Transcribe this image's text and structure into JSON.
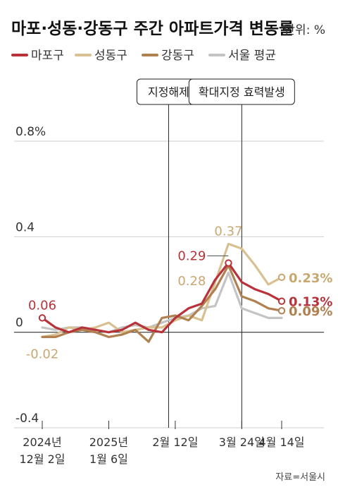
{
  "chart_data": {
    "type": "line",
    "title": "마포·성동·강동구 주간 아파트가격 변동률",
    "unit_label": "단위: %",
    "ylim": [
      -0.4,
      0.8
    ],
    "yticks": [
      {
        "value": 0.8,
        "label": "0.8%"
      },
      {
        "value": 0.4,
        "label": "0.4"
      },
      {
        "value": 0,
        "label": "0"
      },
      {
        "value": -0.4,
        "label": "-0.4"
      }
    ],
    "xlim": [
      0,
      23
    ],
    "xticks": [
      {
        "x": 0,
        "lines": [
          "2024년",
          "12월 2일"
        ]
      },
      {
        "x": 5,
        "lines": [
          "2025년",
          "1월 6일"
        ]
      },
      {
        "x": 10,
        "lines": [
          "2월 12일"
        ]
      },
      {
        "x": 15,
        "lines": [
          "3월 24일"
        ]
      },
      {
        "x": 18,
        "lines": [
          "4월 14일"
        ]
      }
    ],
    "events": [
      {
        "x": 9.5,
        "label": "지정해제"
      },
      {
        "x": 15,
        "label": "확대지정 효력발생"
      }
    ],
    "legend": [
      {
        "name": "마포구",
        "color": "#b8323a"
      },
      {
        "name": "성동구",
        "color": "#d8c090"
      },
      {
        "name": "강동구",
        "color": "#b08050"
      },
      {
        "name": "서울 평균",
        "color": "#c4c4c4"
      }
    ],
    "series": [
      {
        "name": "서울 평균",
        "color": "#c4c4c4",
        "x": [
          0,
          1,
          2,
          3,
          4,
          5,
          6,
          7,
          8,
          9,
          10,
          11,
          12,
          13,
          14,
          15,
          16,
          17,
          18
        ],
        "values": [
          0.02,
          0.01,
          0.02,
          0.02,
          0.01,
          0.0,
          0.02,
          0.03,
          0.02,
          0.04,
          0.06,
          0.07,
          0.1,
          0.11,
          0.25,
          0.1,
          0.08,
          0.06,
          0.06
        ]
      },
      {
        "name": "성동구",
        "color": "#d8c090",
        "x": [
          0,
          1,
          2,
          3,
          4,
          5,
          6,
          7,
          8,
          9,
          10,
          11,
          12,
          13,
          14,
          15,
          16,
          17,
          18
        ],
        "values": [
          -0.02,
          -0.01,
          0.02,
          0.01,
          0.02,
          0.04,
          0.0,
          0.01,
          0.02,
          0.02,
          0.05,
          0.07,
          0.05,
          0.21,
          0.37,
          0.35,
          0.28,
          0.2,
          0.23
        ]
      },
      {
        "name": "강동구",
        "color": "#b08050",
        "x": [
          0,
          1,
          2,
          3,
          4,
          5,
          6,
          7,
          8,
          9,
          10,
          11,
          12,
          13,
          14,
          15,
          16,
          17,
          18
        ],
        "values": [
          -0.02,
          -0.02,
          0.0,
          0.01,
          0.0,
          -0.02,
          -0.01,
          0.01,
          -0.04,
          0.06,
          0.07,
          0.05,
          0.11,
          0.18,
          0.28,
          0.15,
          0.13,
          0.1,
          0.09
        ]
      },
      {
        "name": "마포구",
        "color": "#b8323a",
        "x": [
          0,
          1,
          2,
          3,
          4,
          5,
          6,
          7,
          8,
          9,
          10,
          11,
          12,
          13,
          14,
          15,
          16,
          17,
          18
        ],
        "values": [
          0.06,
          0.02,
          0.0,
          0.02,
          0.01,
          0.0,
          0.01,
          0.04,
          0.01,
          0.0,
          0.06,
          0.1,
          0.12,
          0.22,
          0.29,
          0.21,
          0.18,
          0.16,
          0.13
        ]
      }
    ],
    "annotations": [
      {
        "series": "마포구",
        "x": 0,
        "y": 0.06,
        "text": "0.06",
        "color": "#b8323a",
        "pos": "above"
      },
      {
        "series": "성동구",
        "x": 0,
        "y": -0.02,
        "text": "-0.02",
        "color": "#c8a870",
        "pos": "below"
      },
      {
        "series": "성동구",
        "x": 14,
        "y": 0.37,
        "text": "0.37",
        "color": "#c8a870",
        "pos": "above"
      },
      {
        "series": "마포구",
        "x": 14,
        "y": 0.29,
        "text": "0.29",
        "color": "#b8323a",
        "pos": "leftline"
      },
      {
        "series": "강동구",
        "x": 14,
        "y": 0.28,
        "text": "0.28",
        "color": "#c8a870",
        "pos": "leftlow"
      },
      {
        "series": "성동구",
        "x": 18,
        "y": 0.23,
        "text": "0.23%",
        "color": "#c8a870",
        "pos": "end"
      },
      {
        "series": "마포구",
        "x": 18,
        "y": 0.13,
        "text": "0.13%",
        "color": "#b8323a",
        "pos": "end"
      },
      {
        "series": "강동구",
        "x": 18,
        "y": 0.09,
        "text": "0.09%",
        "color": "#b08050",
        "pos": "end"
      }
    ],
    "source": "자료=서울시"
  }
}
